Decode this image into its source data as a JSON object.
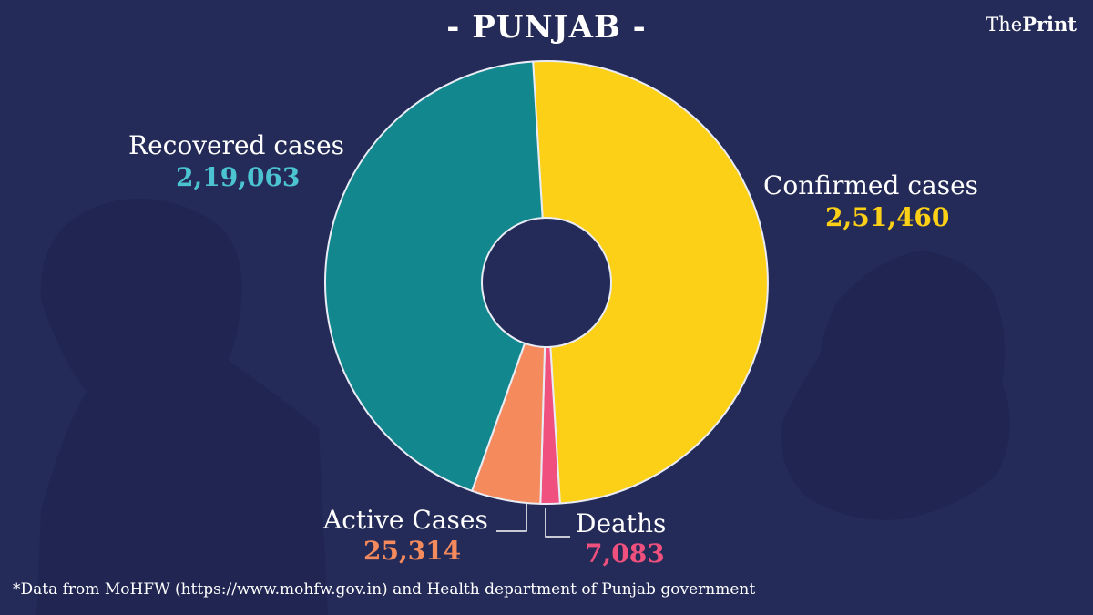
{
  "header": {
    "title": "- PUNJAB -",
    "brand_the": "The",
    "brand_print": "Print"
  },
  "labels": {
    "recovered": "Recovered cases",
    "confirmed": "Confirmed cases",
    "active": "Active Cases",
    "deaths": "Deaths"
  },
  "values": {
    "recovered": "2,19,063",
    "confirmed": "2,51,460",
    "active": "25,314",
    "deaths": "7,083"
  },
  "footnote": "*Data from MoHFW (https://www.mohfw.gov.in)  and Health department of  Punjab government",
  "colors": {
    "background": "#252b58",
    "confirmed": "#fcd016",
    "recovered": "#12878d",
    "active": "#f58a5c",
    "deaths": "#f0507e",
    "recovered_text": "#4cc3d0"
  },
  "chart_data": {
    "type": "pie",
    "donut": true,
    "categories": [
      "Confirmed cases",
      "Deaths",
      "Active Cases",
      "Recovered cases"
    ],
    "values": [
      251460,
      7083,
      25314,
      219063
    ]
  }
}
